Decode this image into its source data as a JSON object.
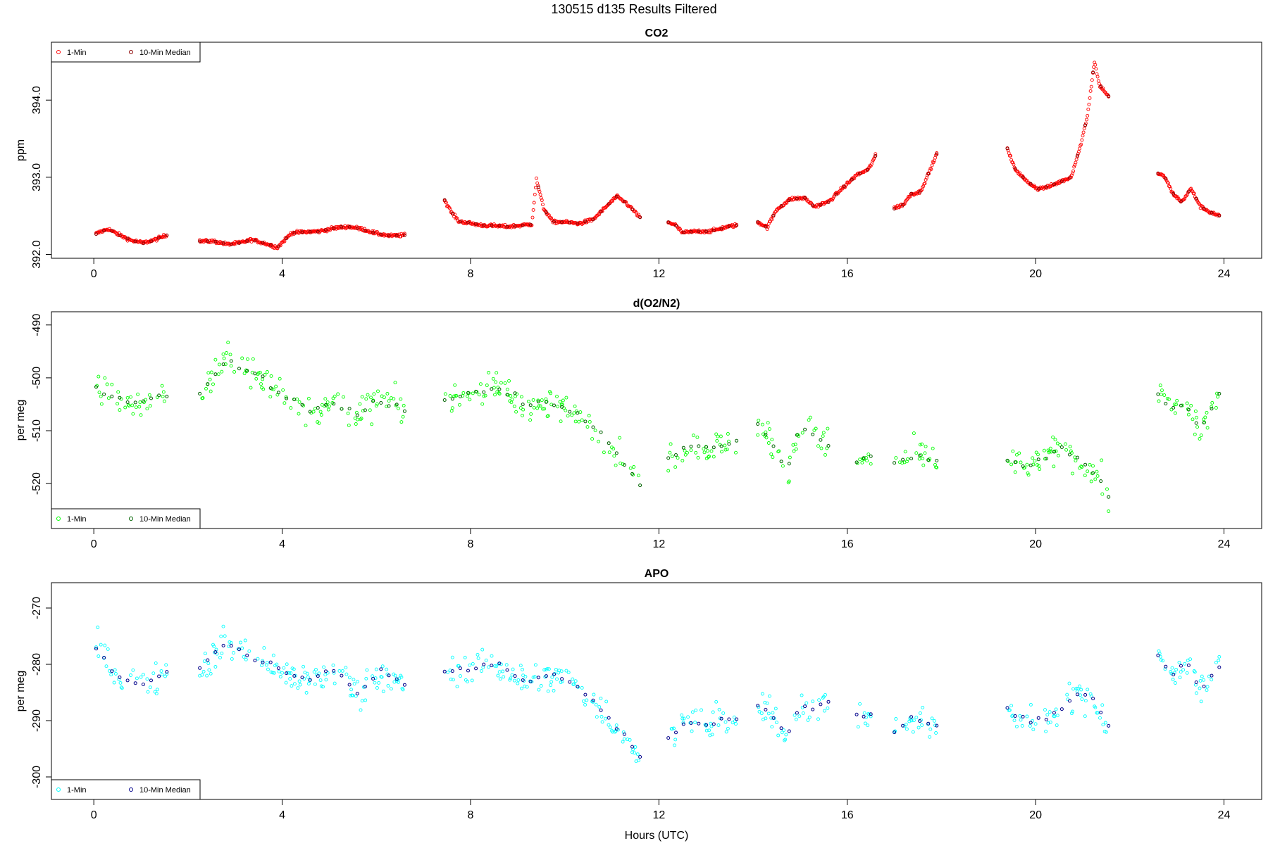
{
  "figure": {
    "title": "130515   d135   Results Filtered",
    "xlabel": "Hours (UTC)"
  },
  "chart_data": [
    {
      "type": "scatter",
      "title": "CO2",
      "xlabel": "",
      "ylabel": "ppm",
      "xlim": [
        -0.9,
        24.8
      ],
      "ylim": [
        391.95,
        394.75
      ],
      "x_ticks": [
        0,
        4,
        8,
        12,
        16,
        20,
        24
      ],
      "y_ticks": [
        392.0,
        393.0,
        394.0
      ],
      "y_tick_labels": [
        "392.0",
        "393.0",
        "394.0"
      ],
      "legend": {
        "position": "top-left",
        "entries": [
          "1-Min",
          "10-Min Median"
        ]
      },
      "colors": {
        "one_min": "#ff0000",
        "median": "#8b0000"
      },
      "segments": [
        {
          "x": [
            0.05,
            0.3,
            0.55,
            0.8,
            1.05,
            1.3,
            1.55
          ],
          "y": [
            392.27,
            392.33,
            392.25,
            392.18,
            392.15,
            392.19,
            392.25
          ]
        },
        {
          "x": [
            2.25,
            2.55,
            2.85,
            3.1,
            3.35,
            3.6,
            3.9,
            4.2,
            4.5,
            4.8,
            5.1,
            5.4,
            5.7,
            6.0,
            6.3,
            6.6
          ],
          "y": [
            392.17,
            392.17,
            392.13,
            392.15,
            392.19,
            392.15,
            392.09,
            392.28,
            392.29,
            392.3,
            392.34,
            392.36,
            392.33,
            392.27,
            392.24,
            392.25
          ]
        },
        {
          "x": [
            7.45,
            7.6,
            7.75,
            8.2,
            8.8,
            9.3,
            9.4,
            9.55,
            9.75,
            10.0,
            10.3,
            10.6,
            10.85,
            11.1,
            11.3,
            11.6
          ],
          "y": [
            392.7,
            392.54,
            392.43,
            392.38,
            392.36,
            392.39,
            392.97,
            392.6,
            392.42,
            392.42,
            392.4,
            392.45,
            392.6,
            392.75,
            392.67,
            392.48
          ]
        },
        {
          "x": [
            12.2,
            12.35,
            12.5,
            12.8,
            13.1,
            13.4,
            13.65
          ],
          "y": [
            392.42,
            392.38,
            392.28,
            392.3,
            392.3,
            392.35,
            392.38
          ]
        },
        {
          "x": [
            14.1,
            14.3,
            14.5,
            14.8,
            15.1,
            15.3,
            15.6,
            15.85,
            16.2,
            16.45,
            16.6
          ],
          "y": [
            392.42,
            392.35,
            392.58,
            392.72,
            392.73,
            392.62,
            392.68,
            392.83,
            393.03,
            393.1,
            393.28
          ]
        },
        {
          "x": [
            17.0,
            17.2,
            17.35,
            17.55,
            17.75,
            17.9
          ],
          "y": [
            392.6,
            392.65,
            392.78,
            392.81,
            393.08,
            393.3
          ]
        },
        {
          "x": [
            19.4,
            19.55,
            19.8,
            20.05,
            20.3,
            20.55,
            20.75,
            20.95,
            21.1,
            21.25,
            21.35,
            21.55
          ],
          "y": [
            393.37,
            393.12,
            392.95,
            392.85,
            392.88,
            392.95,
            393.0,
            393.4,
            393.8,
            394.5,
            394.2,
            394.05
          ]
        },
        {
          "x": [
            22.6,
            22.75,
            22.9,
            23.1,
            23.3,
            23.5,
            23.7,
            23.9
          ],
          "y": [
            393.05,
            393.0,
            392.8,
            392.68,
            392.85,
            392.62,
            392.55,
            392.5
          ]
        }
      ]
    },
    {
      "type": "scatter",
      "title": "d(O2/N2)",
      "xlabel": "",
      "ylabel": "per meg",
      "xlim": [
        -0.9,
        24.8
      ],
      "ylim": [
        -528.5,
        -487.5
      ],
      "x_ticks": [
        0,
        4,
        8,
        12,
        16,
        20,
        24
      ],
      "y_ticks": [
        -520,
        -510,
        -500,
        -490
      ],
      "y_tick_labels": [
        "-520",
        "-510",
        "-500",
        "-490"
      ],
      "legend": {
        "position": "bottom-left",
        "entries": [
          "1-Min",
          "10-Min Median"
        ]
      },
      "colors": {
        "one_min": "#00ff00",
        "median": "#006400"
      },
      "segments": [
        {
          "x": [
            0.05,
            0.5,
            1.0,
            1.55
          ],
          "y": [
            -502,
            -504,
            -505,
            -503
          ]
        },
        {
          "x": [
            2.25,
            2.8,
            3.4,
            4.0,
            4.6,
            5.1,
            5.6,
            6.1,
            6.6
          ],
          "y": [
            -503,
            -497,
            -499,
            -503,
            -506,
            -505,
            -507,
            -504,
            -506
          ]
        },
        {
          "x": [
            7.45,
            8.0,
            8.6,
            9.2,
            9.8,
            10.3,
            10.8,
            11.2,
            11.6
          ],
          "y": [
            -504,
            -503,
            -502,
            -505,
            -505,
            -507,
            -511,
            -515,
            -520
          ]
        },
        {
          "x": [
            12.2,
            12.6,
            13.0,
            13.4,
            13.65
          ],
          "y": [
            -515,
            -513,
            -513,
            -513,
            -512
          ]
        },
        {
          "x": [
            14.1,
            14.4,
            14.7,
            15.0,
            15.3,
            15.6
          ],
          "y": [
            -509,
            -512,
            -518,
            -509,
            -511,
            -513
          ]
        },
        {
          "x": [
            16.2,
            16.5
          ],
          "y": [
            -516,
            -515
          ]
        },
        {
          "x": [
            17.0,
            17.3,
            17.6,
            17.9
          ],
          "y": [
            -516,
            -515,
            -515,
            -516
          ]
        },
        {
          "x": [
            19.4,
            19.8,
            20.2,
            20.6,
            21.0,
            21.3,
            21.55
          ],
          "y": [
            -516,
            -517,
            -515,
            -513,
            -516,
            -518,
            -523
          ]
        },
        {
          "x": [
            22.6,
            22.9,
            23.2,
            23.5,
            23.9
          ],
          "y": [
            -503,
            -506,
            -505,
            -510,
            -503
          ]
        }
      ]
    },
    {
      "type": "scatter",
      "title": "APO",
      "xlabel": "Hours (UTC)",
      "ylabel": "per meg",
      "xlim": [
        -0.9,
        24.8
      ],
      "ylim": [
        -304,
        -265.5
      ],
      "x_ticks": [
        0,
        4,
        8,
        12,
        16,
        20,
        24
      ],
      "y_ticks": [
        -300,
        -290,
        -280,
        -270
      ],
      "y_tick_labels": [
        "-300",
        "-290",
        "-280",
        "-270"
      ],
      "legend": {
        "position": "bottom-left",
        "entries": [
          "1-Min",
          "10-Min Median"
        ]
      },
      "colors": {
        "one_min": "#00ffff",
        "median": "#00008b"
      },
      "segments": [
        {
          "x": [
            0.05,
            0.5,
            1.0,
            1.55
          ],
          "y": [
            -277,
            -282,
            -284,
            -281
          ]
        },
        {
          "x": [
            2.25,
            2.8,
            3.4,
            4.0,
            4.6,
            5.1,
            5.6,
            6.1,
            6.6
          ],
          "y": [
            -281,
            -276,
            -279,
            -281,
            -283,
            -281,
            -285,
            -281,
            -284
          ]
        },
        {
          "x": [
            7.45,
            8.0,
            8.6,
            9.2,
            9.8,
            10.3,
            10.8,
            11.2,
            11.6
          ],
          "y": [
            -281,
            -281,
            -280,
            -283,
            -282,
            -284,
            -288,
            -292,
            -296
          ]
        },
        {
          "x": [
            12.2,
            12.6,
            13.0,
            13.4,
            13.65
          ],
          "y": [
            -293,
            -290,
            -291,
            -290,
            -290
          ]
        },
        {
          "x": [
            14.1,
            14.4,
            14.7,
            15.0,
            15.3,
            15.6
          ],
          "y": [
            -287,
            -289,
            -293,
            -287,
            -288,
            -287
          ]
        },
        {
          "x": [
            16.2,
            16.5
          ],
          "y": [
            -289,
            -289
          ]
        },
        {
          "x": [
            17.0,
            17.3,
            17.6,
            17.9
          ],
          "y": [
            -292,
            -290,
            -290,
            -291
          ]
        },
        {
          "x": [
            19.4,
            19.8,
            20.2,
            20.6,
            21.0,
            21.3,
            21.55
          ],
          "y": [
            -288,
            -290,
            -290,
            -287,
            -285,
            -287,
            -291
          ]
        },
        {
          "x": [
            22.6,
            22.9,
            23.2,
            23.5,
            23.9
          ],
          "y": [
            -278,
            -282,
            -279,
            -285,
            -280
          ]
        }
      ]
    }
  ]
}
